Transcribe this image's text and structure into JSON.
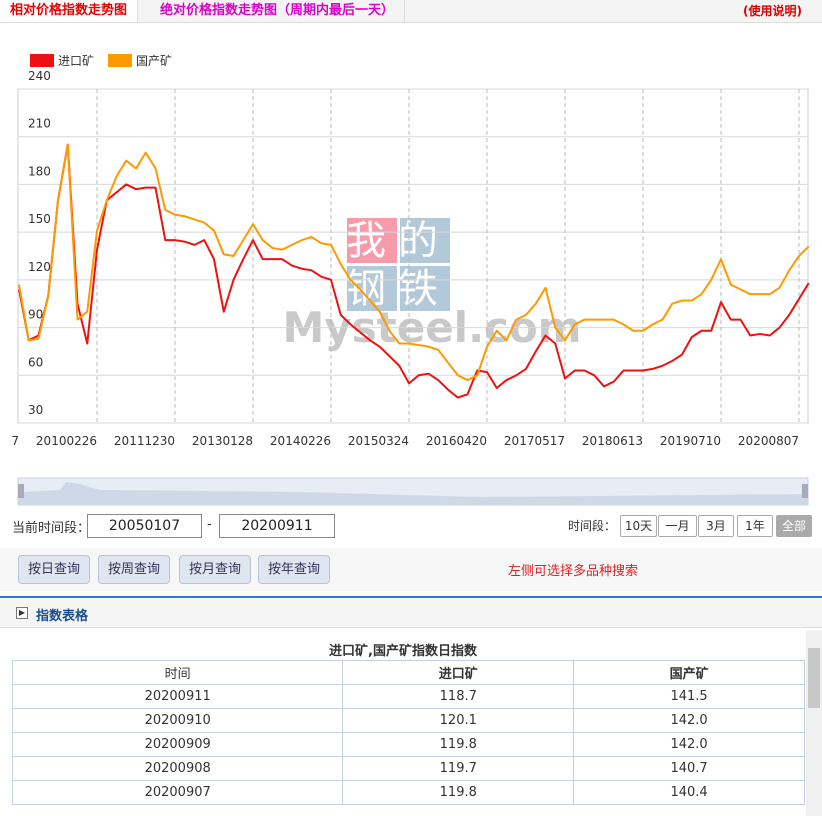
{
  "tabs": [
    "相对价格指数走势图",
    "绝对价格指数走势图（周期内最后一天）"
  ],
  "help": "(使用说明)",
  "watermark": {
    "top": "我的",
    "bottom": "钢铁",
    "brand": "Mysteel.com"
  },
  "chart_data": {
    "type": "line",
    "categories": [
      "7",
      null,
      null,
      null,
      null,
      null,
      null,
      null,
      "20100226",
      null,
      null,
      null,
      null,
      null,
      null,
      null,
      "20111230",
      null,
      null,
      null,
      null,
      null,
      null,
      null,
      "20130128",
      null,
      null,
      null,
      null,
      null,
      null,
      null,
      "20140226",
      null,
      null,
      null,
      null,
      null,
      null,
      null,
      "20150324",
      null,
      null,
      null,
      null,
      null,
      null,
      null,
      "20160420",
      null,
      null,
      null,
      null,
      null,
      null,
      null,
      "20170517",
      null,
      null,
      null,
      null,
      null,
      null,
      null,
      "20180613",
      null,
      null,
      null,
      null,
      null,
      null,
      null,
      "20190710",
      null,
      null,
      null,
      null,
      null,
      null,
      null,
      "20200807",
      null
    ],
    "series": [
      {
        "name": "进口矿",
        "color": "#ee1111",
        "values": [
          114,
          82,
          85,
          110,
          170,
          205,
          105,
          80,
          139,
          170,
          175,
          180,
          177,
          178,
          178,
          145,
          145,
          144,
          142,
          145,
          133,
          100,
          120,
          133,
          145,
          133,
          133,
          133,
          129,
          127,
          126,
          122,
          120,
          98,
          92,
          87,
          82,
          78,
          72,
          66,
          55,
          60,
          61,
          57,
          51,
          46,
          48,
          63,
          62,
          52,
          57,
          60,
          64,
          75,
          85,
          80,
          58,
          63,
          63,
          60,
          53,
          56,
          63,
          63,
          63,
          64,
          66,
          69,
          73,
          84,
          88,
          88,
          106,
          95,
          95,
          85,
          86,
          85,
          90,
          98,
          108,
          118
        ]
      },
      {
        "name": "国产矿",
        "color": "#ff9900",
        "values": [
          117,
          82,
          83,
          110,
          170,
          205,
          95,
          100,
          151,
          170,
          185,
          195,
          190,
          200,
          190,
          164,
          161,
          160,
          158,
          156,
          151,
          136,
          135,
          145,
          155,
          145,
          140,
          139,
          142,
          145,
          147,
          143,
          142,
          130,
          120,
          114,
          107,
          100,
          88,
          80,
          80,
          79,
          78,
          76,
          68,
          60,
          57,
          60,
          78,
          88,
          82,
          95,
          98,
          105,
          115,
          90,
          82,
          92,
          95,
          95,
          95,
          95,
          92,
          88,
          88,
          92,
          95,
          105,
          107,
          107,
          111,
          120,
          133,
          117,
          114,
          111,
          111,
          111,
          115,
          126,
          135,
          141
        ]
      }
    ],
    "ylim": [
      30,
      240
    ],
    "yticks": [
      30,
      60,
      90,
      120,
      150,
      180,
      210,
      240
    ],
    "grid": true
  },
  "controls": {
    "range_label": "当前时间段：",
    "start": "20050107",
    "dash": "-",
    "end": "20200911",
    "period_label": "时间段：",
    "periods": [
      "10天",
      "一月",
      "3月",
      "1年",
      "全部"
    ],
    "queries": [
      "按日查询",
      "按周查询",
      "按月查询",
      "按年查询"
    ],
    "hint": "左侧可选择多品种搜索"
  },
  "table": {
    "section": "指数表格",
    "title": "进口矿,国产矿指数日指数",
    "columns": [
      "时间",
      "进口矿",
      "国产矿"
    ],
    "rows": [
      [
        "20200911",
        "118.7",
        "141.5"
      ],
      [
        "20200910",
        "120.1",
        "142.0"
      ],
      [
        "20200909",
        "119.8",
        "142.0"
      ],
      [
        "20200908",
        "119.7",
        "140.7"
      ],
      [
        "20200907",
        "119.8",
        "140.4"
      ]
    ]
  }
}
